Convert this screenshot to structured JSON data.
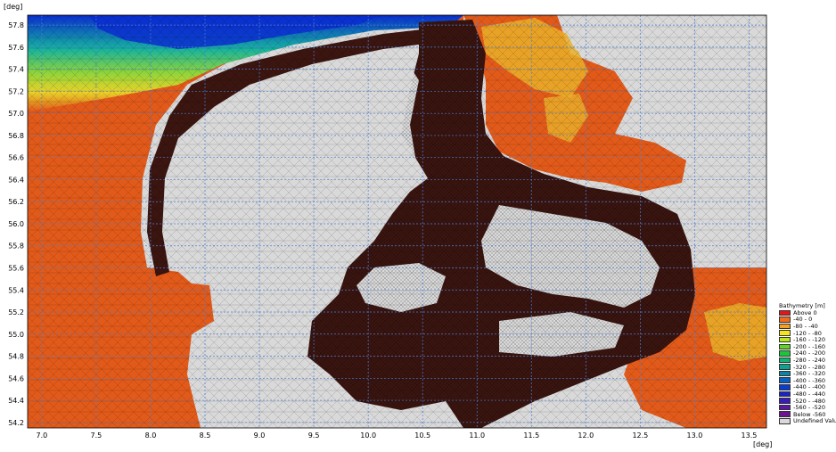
{
  "map": {
    "y_unit": "[deg]",
    "x_unit": "[deg]",
    "x_range": [
      6.87,
      13.66
    ],
    "y_range": [
      54.15,
      57.89
    ],
    "x_ticks": [
      "7.0",
      "7.5",
      "8.0",
      "8.5",
      "9.0",
      "9.5",
      "10.0",
      "10.5",
      "11.0",
      "11.5",
      "12.0",
      "12.5",
      "13.0",
      "13.5"
    ],
    "y_ticks": [
      "57.8",
      "57.6",
      "57.4",
      "57.2",
      "57.0",
      "56.8",
      "56.6",
      "56.4",
      "56.2",
      "56.0",
      "55.8",
      "55.6",
      "55.4",
      "55.2",
      "55.0",
      "54.8",
      "54.6",
      "54.4",
      "54.2"
    ],
    "grid": "dashed",
    "grid_color": "#4a7fd6",
    "land_color": "#d9d9d9",
    "mesh_color": "#000000"
  },
  "legend": {
    "title": "Bathymetry [m]",
    "placement": "right-bottom",
    "items": [
      {
        "label": "Above    0",
        "color": "#e8141a"
      },
      {
        "label": "-40 -    0",
        "color": "#f26a1b"
      },
      {
        "label": "-80 -  -40",
        "color": "#f7a01e"
      },
      {
        "label": "-120 -  -80",
        "color": "#f5e31c"
      },
      {
        "label": "-160 - -120",
        "color": "#b9e81e"
      },
      {
        "label": "-200 - -160",
        "color": "#5fd523"
      },
      {
        "label": "-240 - -200",
        "color": "#1cc63a"
      },
      {
        "label": "-280 - -240",
        "color": "#12b36e"
      },
      {
        "label": "-320 - -280",
        "color": "#0fa08e"
      },
      {
        "label": "-360 - -320",
        "color": "#0d83a8"
      },
      {
        "label": "-400 - -360",
        "color": "#0a5fc0"
      },
      {
        "label": "-440 - -400",
        "color": "#0a3cd0"
      },
      {
        "label": "-480 - -440",
        "color": "#1a24c4"
      },
      {
        "label": "-520 - -480",
        "color": "#3a1cb8"
      },
      {
        "label": "-560 - -520",
        "color": "#5a17a8"
      },
      {
        "label": "Below -560",
        "color": "#6d1390"
      },
      {
        "label": "Undefined Value",
        "color": "#d9d9d9"
      }
    ]
  },
  "fill_colors": {
    "shelf": "#e25a1a",
    "inner_waters": "#3b1510",
    "yellow_zone": "#e9b02a",
    "green_zone": "#8fd43a",
    "blue_zone": "#1730c8"
  }
}
